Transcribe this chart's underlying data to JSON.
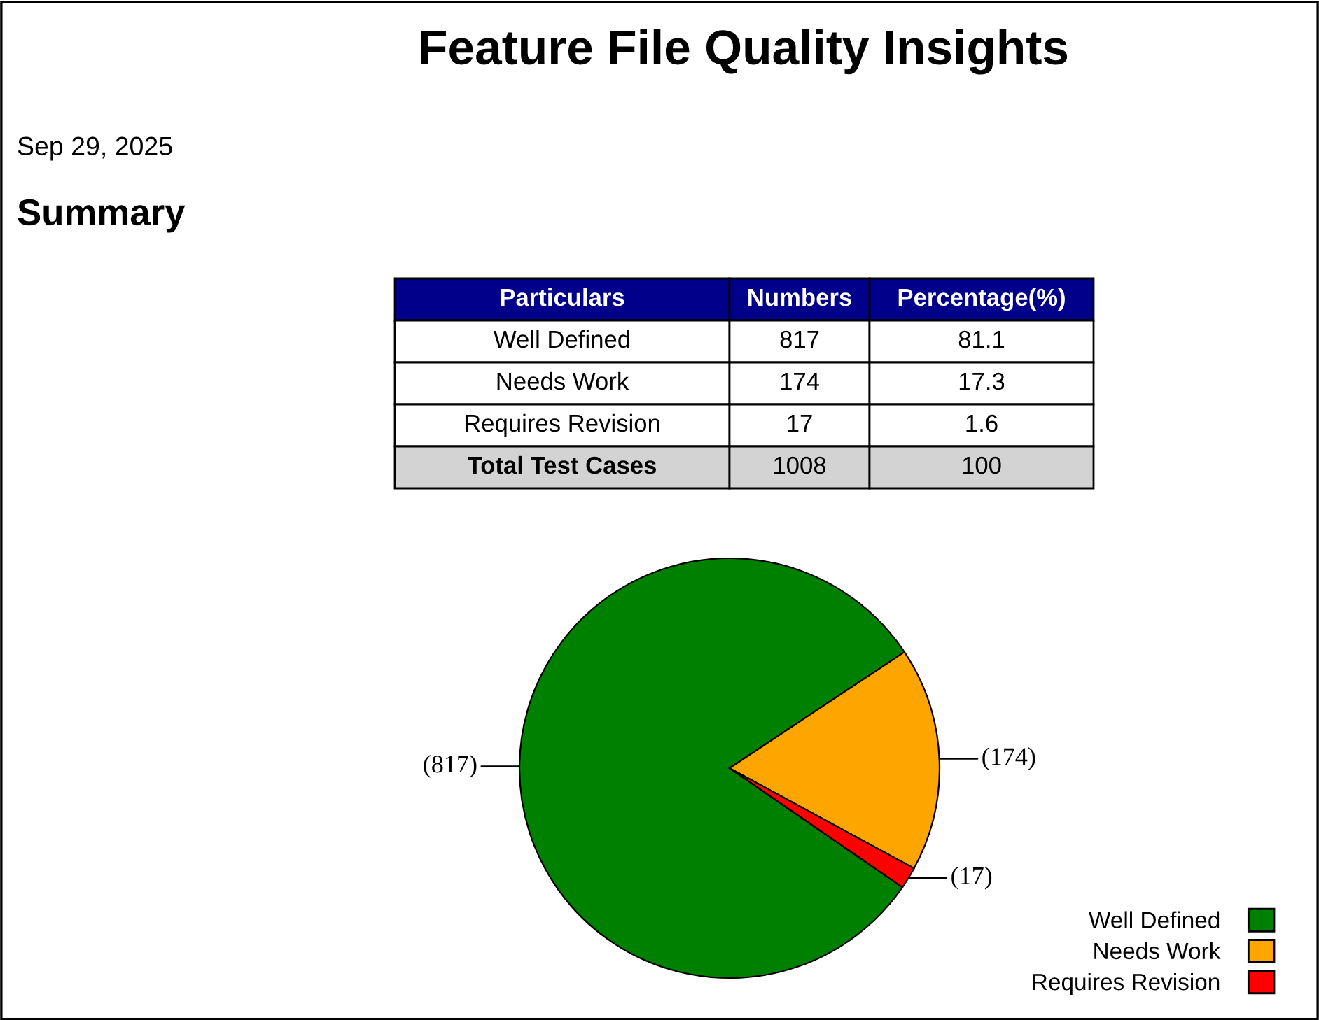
{
  "chart_data": {
    "type": "pie",
    "title": "Feature File Quality Insights",
    "subtitle": "Sep 29, 2025",
    "categories": [
      "Well Defined",
      "Needs Work",
      "Requires Revision"
    ],
    "values": [
      817,
      174,
      17
    ],
    "colors": [
      "#008000",
      "#ffa500",
      "#ff0000"
    ],
    "value_labels": [
      "(817)",
      "(174)",
      "(17)"
    ],
    "legend": "bottom right",
    "annotations": [
      "Summary",
      "Particulars",
      "Numbers",
      "Percentage(%)",
      "Well Defined",
      "817",
      "81.1",
      "Needs Work",
      "174",
      "17.3",
      "Requires Revision",
      "17",
      "1.6",
      "Total Test Cases",
      "1008",
      "100"
    ]
  }
}
